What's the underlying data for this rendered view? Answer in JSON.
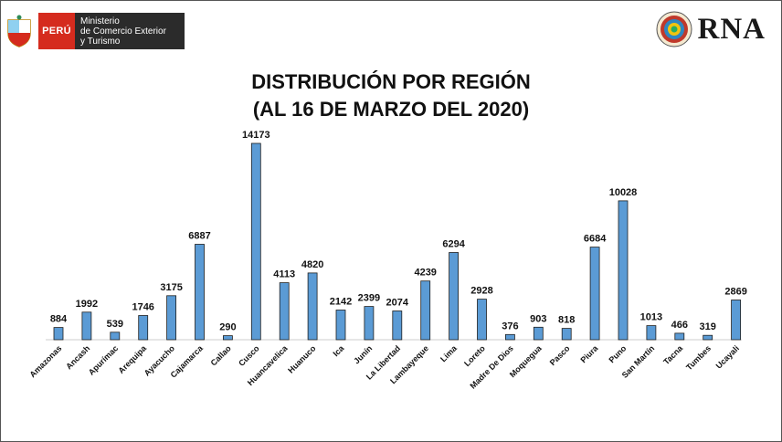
{
  "header": {
    "peru_label": "PERÚ",
    "ministry_line1": "Ministerio",
    "ministry_line2": "de Comercio Exterior",
    "ministry_line3": "y Turismo",
    "rna_label": "RNA"
  },
  "chart_data": {
    "type": "bar",
    "title": "DISTRIBUCIÓN POR REGIÓN",
    "subtitle": "(AL 16 DE MARZO DEL 2020)",
    "categories": [
      "Amazonas",
      "Ancash",
      "Apurímac",
      "Arequipa",
      "Ayacucho",
      "Cajamarca",
      "Callao",
      "Cusco",
      "Huancavelica",
      "Huanuco",
      "Ica",
      "Junín",
      "La Libertad",
      "Lambayeque",
      "Lima",
      "Loreto",
      "Madre De Dios",
      "Moquegua",
      "Pasco",
      "Piura",
      "Puno",
      "San Martín",
      "Tacna",
      "Tumbes",
      "Ucayali"
    ],
    "values": [
      884,
      1992,
      539,
      1746,
      3175,
      6887,
      290,
      14173,
      4113,
      4820,
      2142,
      2399,
      2074,
      4239,
      6294,
      2928,
      376,
      903,
      818,
      6684,
      10028,
      1013,
      466,
      319,
      2869
    ],
    "ylim": [
      0,
      14173
    ],
    "grid": false,
    "legend": "none",
    "bar_color": "#5b9bd5"
  }
}
